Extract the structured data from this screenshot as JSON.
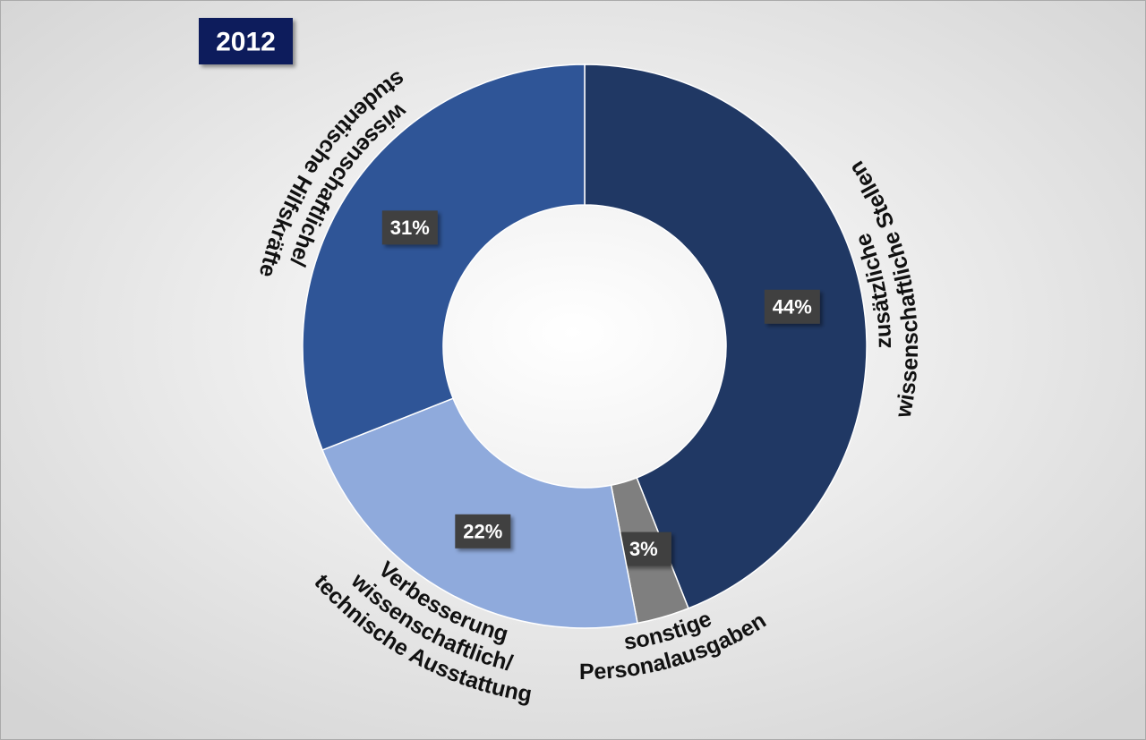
{
  "chart_data": {
    "type": "donut",
    "title": "2012",
    "categories": [
      [
        "zusätzliche",
        "wissenschaftliche Stellen"
      ],
      [
        "sonstige",
        "Personalausgaben"
      ],
      [
        "Verbesserung",
        "wissenschaftlich/",
        "technische Ausstattung"
      ],
      [
        "wissenschaftliche/",
        "studentische Hilfskräfte"
      ]
    ],
    "values": [
      44,
      3,
      22,
      31
    ],
    "value_labels": [
      "44%",
      "3%",
      "22%",
      "31%"
    ],
    "colors": [
      "#203864",
      "#7f7f7f",
      "#8faadc",
      "#2f5597"
    ]
  }
}
